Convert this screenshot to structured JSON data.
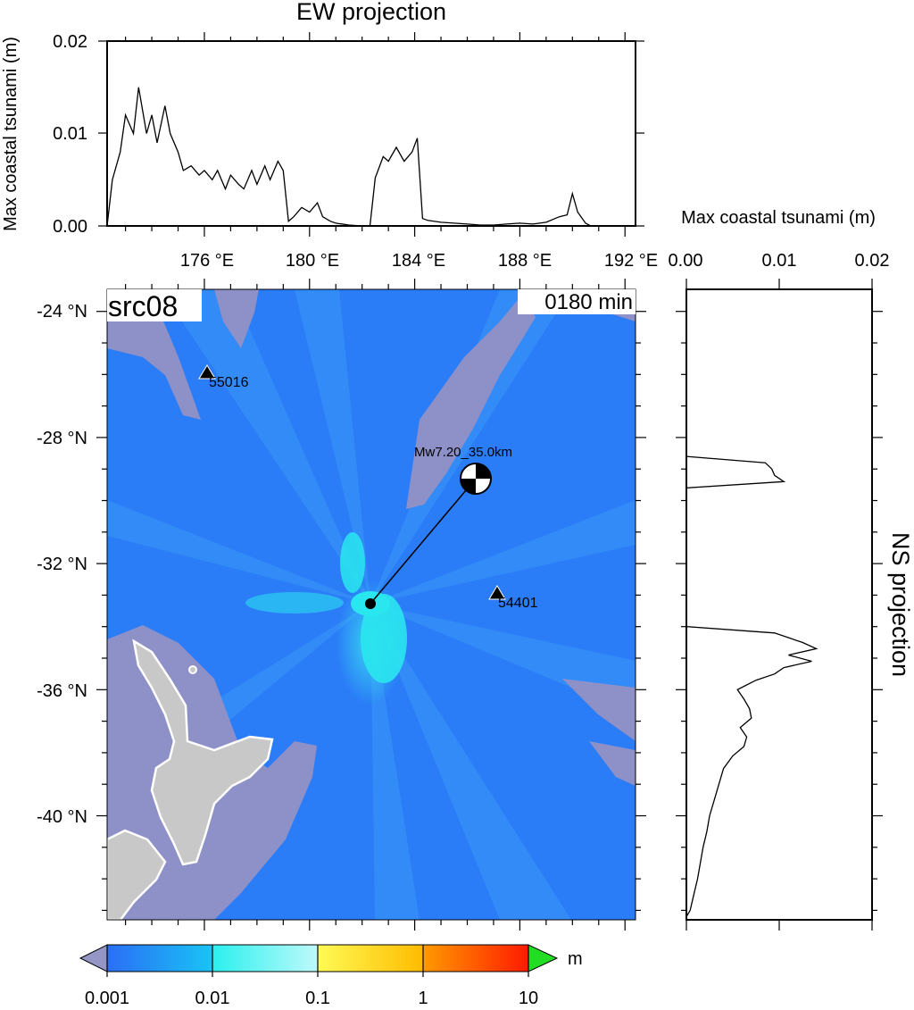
{
  "ew_panel": {
    "title": "EW projection",
    "ylabel": "Max coastal tsunami (m)",
    "yticks": [
      "0.02",
      "0.01",
      "0.00"
    ],
    "xticks": [
      "176 °E",
      "180 °E",
      "184 °E",
      "188 °E",
      "192 °E"
    ]
  },
  "ns_panel": {
    "title": "NS projection",
    "xlabel": "Max coastal tsunami (m)",
    "xticks": [
      "0.00",
      "0.01",
      "0.02"
    ]
  },
  "map": {
    "source_label": "src08",
    "time_label": "0180 min",
    "lat_ticks": [
      "-24 °N",
      "-28 °N",
      "-32 °N",
      "-36 °N",
      "-40 °N"
    ],
    "event_label": "Mw7.20_35.0km",
    "stations": [
      {
        "id": "55016"
      },
      {
        "id": "54401"
      }
    ],
    "colors": {
      "ocean": "#2a7df7",
      "bathymetry_shallow": "#8e90c8",
      "land": "#c8c8c8",
      "high_wave": "#27f2ee"
    }
  },
  "colorbar": {
    "unit": "m",
    "labels": [
      "0.001",
      "0.01",
      "0.1",
      "1",
      "10"
    ],
    "under_color": "#9595c6",
    "over_color": "#22dd22"
  },
  "chart_data": [
    {
      "type": "line",
      "title": "EW projection",
      "xlabel": "",
      "ylabel": "Max coastal tsunami (m)",
      "x_unit": "°E",
      "ylim": [
        0,
        0.02
      ],
      "xlim": [
        172.3,
        192.4
      ],
      "series": [
        {
          "x": [
            172.3,
            172.5,
            172.8,
            173.0,
            173.3,
            173.5,
            173.8,
            174.0,
            174.2,
            174.5,
            174.7,
            175.0,
            175.2,
            175.5,
            175.8,
            176.0,
            176.3,
            176.5,
            176.8,
            177.0,
            177.3,
            177.5,
            177.8,
            178.0,
            178.3,
            178.5,
            178.8,
            179.0,
            179.2,
            179.4,
            179.7,
            180.0,
            180.3,
            180.5,
            180.8,
            181.0,
            181.5,
            182.0,
            182.3,
            182.5,
            182.8,
            183.0,
            183.3,
            183.6,
            183.9,
            184.1,
            184.3,
            184.5,
            185.0,
            185.5,
            186.0,
            186.5,
            187.0,
            187.5,
            188.0,
            188.5,
            189.0,
            189.5,
            189.8,
            190.0,
            190.2,
            190.5,
            190.7
          ],
          "y": [
            0.0,
            0.005,
            0.008,
            0.012,
            0.01,
            0.015,
            0.01,
            0.012,
            0.009,
            0.013,
            0.01,
            0.008,
            0.006,
            0.0065,
            0.0055,
            0.006,
            0.005,
            0.006,
            0.004,
            0.0055,
            0.0045,
            0.004,
            0.006,
            0.0045,
            0.0065,
            0.005,
            0.007,
            0.006,
            0.0005,
            0.001,
            0.002,
            0.0015,
            0.0025,
            0.001,
            0.0005,
            0.0003,
            0.0001,
            0.0,
            0.0,
            0.0052,
            0.0075,
            0.007,
            0.0085,
            0.007,
            0.008,
            0.0095,
            0.0008,
            0.0006,
            0.0004,
            0.0003,
            0.0002,
            0.0001,
            0.0001,
            0.0002,
            0.0003,
            0.0002,
            0.0004,
            0.001,
            0.0012,
            0.0035,
            0.0015,
            0.0003,
            0.0
          ]
        }
      ]
    },
    {
      "type": "line",
      "title": "NS projection",
      "xlabel": "Max coastal tsunami (m)",
      "ylabel": "",
      "y_unit": "°N",
      "xlim": [
        0,
        0.02
      ],
      "ylim": [
        -43.3,
        -23.3
      ],
      "series": [
        {
          "y": [
            -28.6,
            -28.8,
            -29.0,
            -29.2,
            -29.4,
            -29.6,
            -34.0,
            -34.2,
            -34.5,
            -34.7,
            -34.9,
            -35.1,
            -35.3,
            -35.5,
            -35.7,
            -36.0,
            -36.3,
            -36.6,
            -36.9,
            -37.2,
            -37.5,
            -37.8,
            -38.1,
            -38.5,
            -39.0,
            -39.5,
            -40.0,
            -40.5,
            -41.0,
            -41.5,
            -42.0,
            -42.5,
            -43.0,
            -43.2
          ],
          "x": [
            0.0,
            0.0085,
            0.0092,
            0.0095,
            0.0105,
            0.0,
            0.0,
            0.0095,
            0.0125,
            0.014,
            0.011,
            0.0135,
            0.0105,
            0.0095,
            0.0075,
            0.0055,
            0.0062,
            0.0068,
            0.007,
            0.0058,
            0.0065,
            0.0062,
            0.005,
            0.004,
            0.0035,
            0.003,
            0.0025,
            0.0022,
            0.0018,
            0.0015,
            0.0012,
            0.0008,
            0.0004,
            0.0
          ]
        }
      ]
    }
  ]
}
